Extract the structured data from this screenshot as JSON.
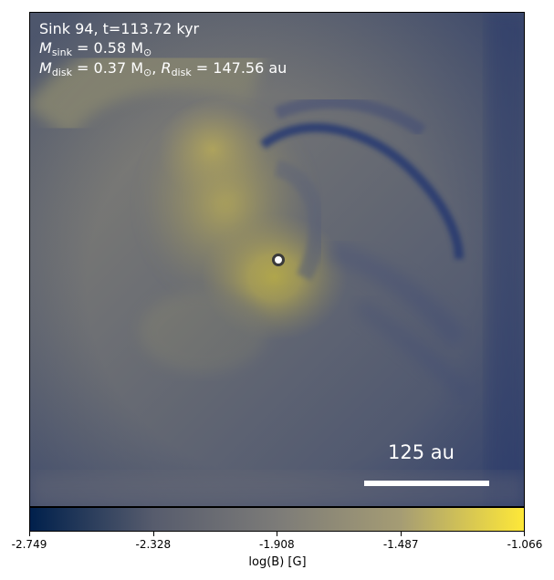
{
  "annotation": {
    "line1": "Sink 94, t=113.72 kyr",
    "sink_mass_symbol": "M",
    "sink_mass_sub": "sink",
    "sink_mass_value": " = 0.58 M",
    "sink_mass_unit_sub": "⊙",
    "disk_mass_symbol": "M",
    "disk_mass_sub": "disk",
    "disk_mass_value": " = 0.37 M",
    "disk_mass_unit_sub": "⊙",
    "disk_radius_sep": ", ",
    "disk_radius_symbol": "R",
    "disk_radius_sub": "disk",
    "disk_radius_value": " = 147.56 au"
  },
  "scalebar": {
    "label": "125 au"
  },
  "colorbar": {
    "label": "log(B) [G]",
    "min": -2.749,
    "max": -1.066,
    "ticks": [
      "-2.749",
      "-2.328",
      "-1.908",
      "-1.487",
      "-1.066"
    ],
    "colors": [
      "#00204c",
      "#575c6d",
      "#7c7b78",
      "#a59c74",
      "#fee838"
    ]
  }
}
